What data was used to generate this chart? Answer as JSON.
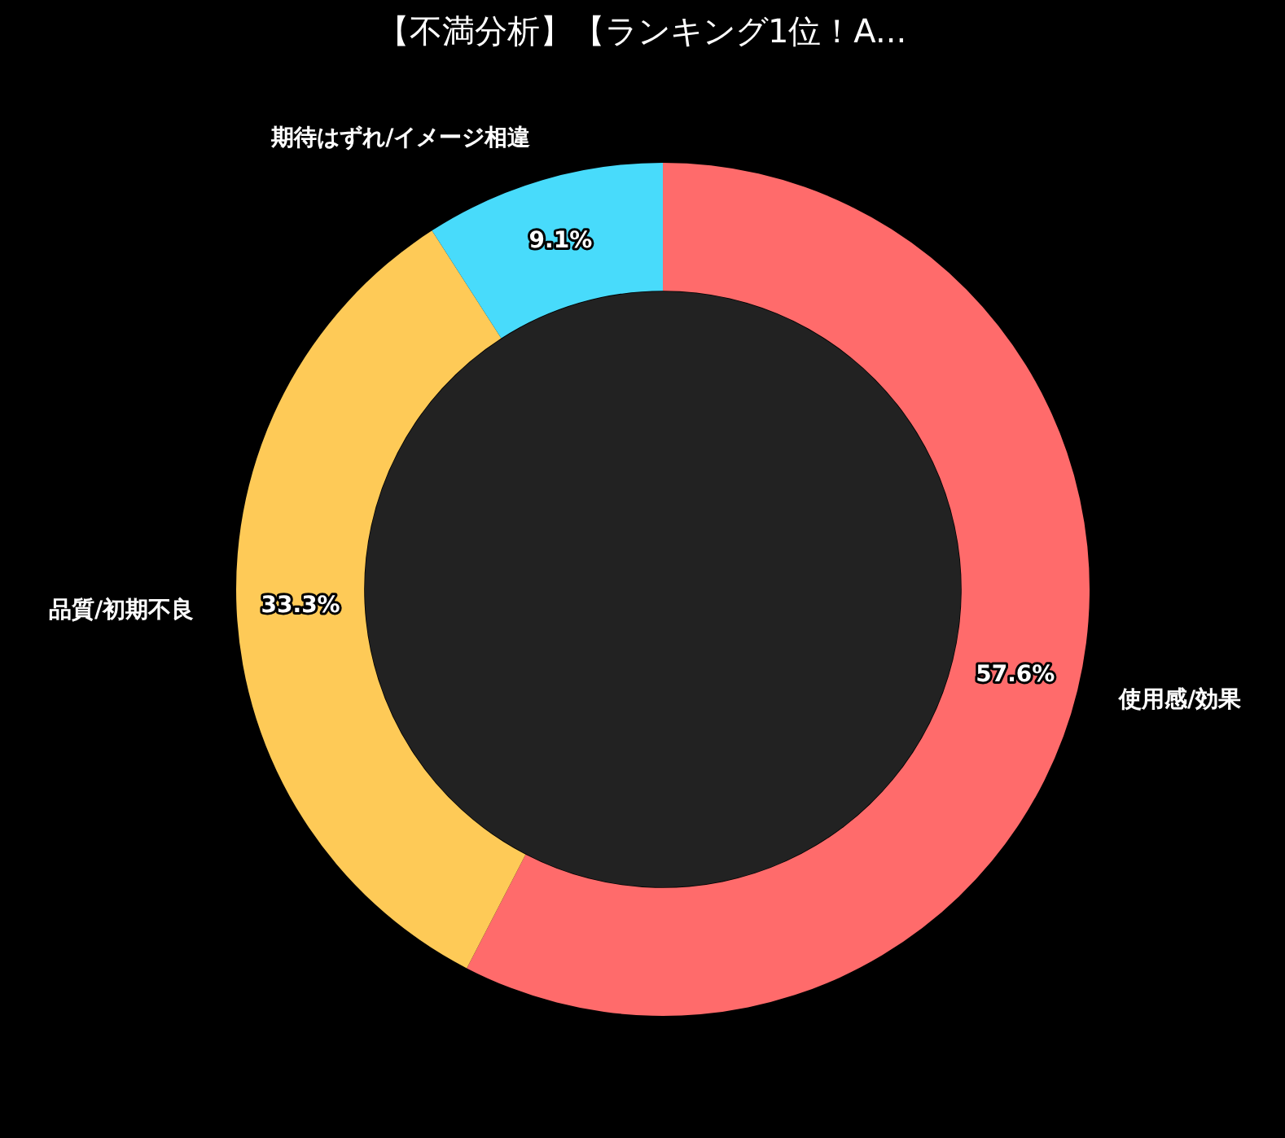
{
  "chart_data": {
    "type": "donut",
    "title": "【不満分析】【ランキング1位！A...",
    "categories": [
      "使用感/効果",
      "品質/初期不良",
      "期待はずれ/イメージ相違"
    ],
    "values": [
      57.6,
      33.3,
      9.1
    ],
    "colors": [
      "#ff6b6b",
      "#feca57",
      "#48dbfb"
    ],
    "value_labels": [
      "57.6%",
      "33.3%",
      "9.1%"
    ]
  }
}
